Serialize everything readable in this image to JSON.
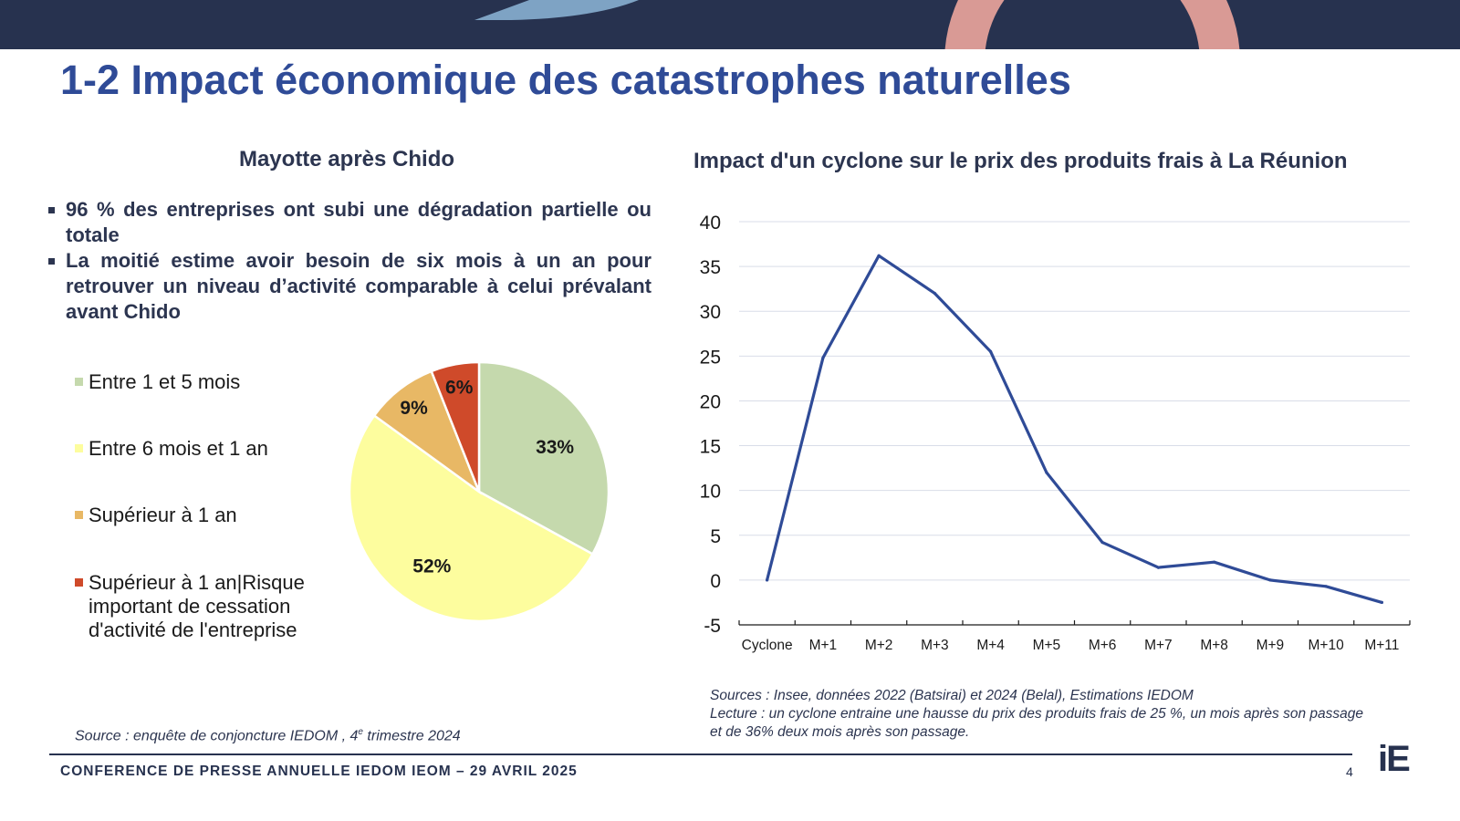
{
  "slide": {
    "title": "1-2 Impact économique des catastrophes naturelles",
    "footer": "CONFERENCE DE PRESSE ANNUELLE IEDOM IEOM – 29 AVRIL 2025",
    "page_number": "4",
    "logo_text": "iE"
  },
  "colors": {
    "header_bar": "#27324f",
    "title": "#2f4b97",
    "line_series": "#2f4b97",
    "deco_light_blue": "#7ea3c4",
    "deco_pink": "#d99a95"
  },
  "left": {
    "heading": "Mayotte après Chido",
    "bullets": [
      "96 % des entreprises ont subi une dégradation partielle ou totale",
      "La moitié estime avoir besoin de six mois à un an pour retrouver un niveau d’activité comparable à celui prévalant avant Chido"
    ],
    "source_prefix": "Source : enquête de conjoncture IEDOM , 4",
    "source_sup": "e",
    "source_suffix": " trimestre 2024"
  },
  "right": {
    "heading": "Impact d'un cyclone sur le prix des produits frais à La Réunion",
    "sources": "Sources : Insee, données 2022 (Batsirai) et 2024 (Belal), Estimations IEDOM",
    "reading_line1": "Lecture : un cyclone entraine une hausse du prix des produits frais de 25 %, un mois après son passage",
    "reading_line2": "et de 36% deux mois après son passage."
  },
  "chart_data": [
    {
      "type": "pie",
      "categories": [
        "Entre 1 et 5 mois",
        "Entre 6 mois et 1 an",
        "Supérieur à 1 an",
        "Supérieur à 1 an|Risque important de cessation d'activité de l'entreprise"
      ],
      "values": [
        33,
        52,
        9,
        6
      ],
      "labels": [
        "33%",
        "52%",
        "9%",
        "6%"
      ],
      "colors": [
        "#c5d9ad",
        "#fdfd9e",
        "#e8b865",
        "#cf4a2a"
      ],
      "legend_position": "left"
    },
    {
      "type": "line",
      "categories": [
        "Cyclone",
        "M+1",
        "M+2",
        "M+3",
        "M+4",
        "M+5",
        "M+6",
        "M+7",
        "M+8",
        "M+9",
        "M+10",
        "M+11"
      ],
      "series": [
        {
          "values": [
            0,
            24.8,
            36.2,
            32,
            25.5,
            12,
            4.2,
            1.4,
            2,
            0,
            -0.7,
            -2.5
          ]
        }
      ],
      "yticks": [
        "-5",
        "0",
        "5",
        "10",
        "15",
        "20",
        "25",
        "30",
        "35",
        "40"
      ],
      "ylim": [
        -5,
        40
      ],
      "grid": true
    }
  ]
}
